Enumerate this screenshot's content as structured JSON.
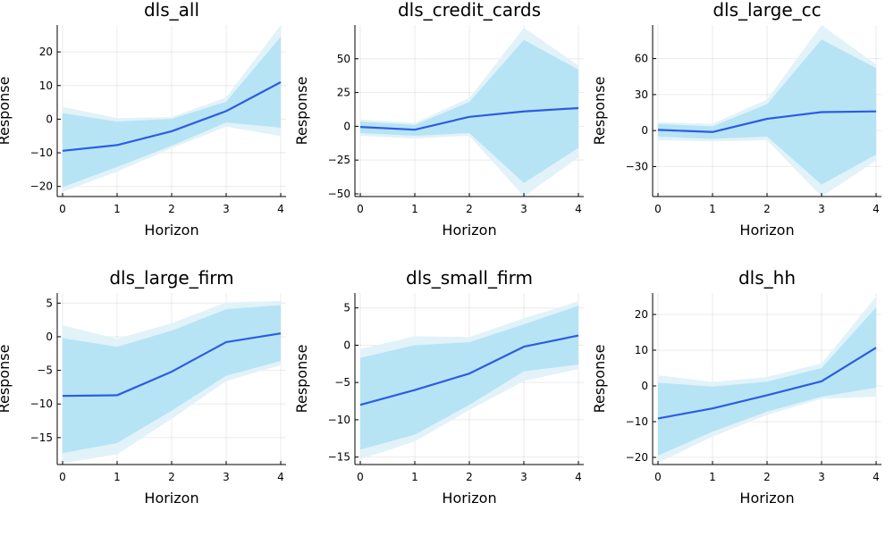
{
  "chart_data": [
    {
      "type": "line",
      "title": "dls_all",
      "xlabel": "Horizon",
      "ylabel": "Response",
      "x": [
        0,
        1,
        2,
        3,
        4
      ],
      "xticks": [
        "0",
        "1",
        "2",
        "3",
        "4"
      ],
      "yticks": [
        -20,
        -10,
        0,
        10,
        20
      ],
      "ylim": [
        -23,
        28
      ],
      "grid": true,
      "series": [
        {
          "values": [
            -9.4,
            -7.7,
            -3.6,
            2.4,
            11.0
          ]
        }
      ],
      "bands": {
        "outer_lower": [
          -21.6,
          -15.6,
          -8.6,
          -2.2,
          -5.0
        ],
        "outer_upper": [
          3.7,
          0.3,
          0.6,
          6.5,
          28.0
        ],
        "inner_lower": [
          -20.2,
          -14.2,
          -7.9,
          -1.0,
          -2.5
        ],
        "inner_upper": [
          1.8,
          -0.7,
          0.1,
          5.2,
          24.5
        ]
      }
    },
    {
      "type": "line",
      "title": "dls_credit_cards",
      "xlabel": "Horizon",
      "ylabel": "Response",
      "x": [
        0,
        1,
        2,
        3,
        4
      ],
      "xticks": [
        "0",
        "1",
        "2",
        "3",
        "4"
      ],
      "yticks": [
        -50,
        -25,
        0,
        25,
        50
      ],
      "ylim": [
        -52,
        75
      ],
      "grid": true,
      "series": [
        {
          "values": [
            -0.5,
            -2.5,
            7.0,
            11.0,
            13.5
          ]
        }
      ],
      "bands": {
        "outer_lower": [
          -7.0,
          -9.0,
          -7.0,
          -52.0,
          -23.0
        ],
        "outer_upper": [
          5.0,
          2.5,
          21.0,
          73.0,
          45.0
        ],
        "inner_lower": [
          -5.0,
          -7.0,
          -5.0,
          -42.0,
          -16.0
        ],
        "inner_upper": [
          3.5,
          1.0,
          18.0,
          64.0,
          42.0
        ]
      }
    },
    {
      "type": "line",
      "title": "dls_large_cc",
      "xlabel": "Horizon",
      "ylabel": "Response",
      "x": [
        0,
        1,
        2,
        3,
        4
      ],
      "xticks": [
        "0",
        "1",
        "2",
        "3",
        "4"
      ],
      "yticks": [
        -30,
        0,
        30,
        60
      ],
      "ylim": [
        -55,
        88
      ],
      "grid": true,
      "series": [
        {
          "values": [
            0.6,
            -1.2,
            9.8,
            15.4,
            16.0
          ]
        }
      ],
      "bands": {
        "outer_lower": [
          -8.0,
          -9.0,
          -8.0,
          -55.0,
          -25.0
        ],
        "outer_upper": [
          7.0,
          5.5,
          26.0,
          88.0,
          55.0
        ],
        "inner_lower": [
          -5.0,
          -7.0,
          -5.0,
          -45.0,
          -20.0
        ],
        "inner_upper": [
          5.5,
          3.5,
          22.0,
          76.0,
          52.0
        ]
      }
    },
    {
      "type": "line",
      "title": "dls_large_firm",
      "xlabel": "Horizon",
      "ylabel": "Response",
      "x": [
        0,
        1,
        2,
        3,
        4
      ],
      "xticks": [
        "0",
        "1",
        "2",
        "3",
        "4"
      ],
      "yticks": [
        -15,
        -10,
        -5,
        0,
        5
      ],
      "ylim": [
        -19,
        6.5
      ],
      "grid": true,
      "series": [
        {
          "values": [
            -8.8,
            -8.7,
            -5.2,
            -0.8,
            0.5
          ]
        }
      ],
      "bands": {
        "outer_lower": [
          -18.8,
          -17.5,
          -12.2,
          -6.6,
          -4.2
        ],
        "outer_upper": [
          1.7,
          -0.3,
          2.0,
          5.1,
          5.3
        ],
        "inner_lower": [
          -17.3,
          -15.8,
          -11.0,
          -5.8,
          -3.6
        ],
        "inner_upper": [
          -0.2,
          -1.5,
          0.9,
          4.1,
          4.7
        ]
      }
    },
    {
      "type": "line",
      "title": "dls_small_firm",
      "xlabel": "Horizon",
      "ylabel": "Response",
      "x": [
        0,
        1,
        2,
        3,
        4
      ],
      "xticks": [
        "0",
        "1",
        "2",
        "3",
        "4"
      ],
      "yticks": [
        -15,
        -10,
        -5,
        0,
        5
      ],
      "ylim": [
        -16,
        7
      ],
      "grid": true,
      "series": [
        {
          "values": [
            -8.0,
            -6.0,
            -3.8,
            -0.2,
            1.3
          ]
        }
      ],
      "bands": {
        "outer_lower": [
          -15.3,
          -12.9,
          -8.7,
          -4.8,
          -3.2
        ],
        "outer_upper": [
          -0.5,
          1.2,
          1.1,
          3.6,
          5.9
        ],
        "inner_lower": [
          -14.0,
          -12.0,
          -8.0,
          -3.5,
          -2.6
        ],
        "inner_upper": [
          -1.7,
          0.0,
          0.4,
          2.8,
          5.3
        ]
      }
    },
    {
      "type": "line",
      "title": "dls_hh",
      "xlabel": "Horizon",
      "ylabel": "Response",
      "x": [
        0,
        1,
        2,
        3,
        4
      ],
      "xticks": [
        "0",
        "1",
        "2",
        "3",
        "4"
      ],
      "yticks": [
        -20,
        -10,
        0,
        10,
        20
      ],
      "ylim": [
        -22,
        26
      ],
      "grid": true,
      "series": [
        {
          "values": [
            -9.1,
            -6.3,
            -2.6,
            1.3,
            10.7
          ]
        }
      ],
      "bands": {
        "outer_lower": [
          -21.5,
          -14.2,
          -8.1,
          -3.6,
          -3.0
        ],
        "outer_upper": [
          3.0,
          1.1,
          2.5,
          6.3,
          25.0
        ],
        "inner_lower": [
          -19.5,
          -12.8,
          -7.2,
          -3.0,
          -0.5
        ],
        "inner_upper": [
          0.9,
          -0.2,
          1.2,
          5.0,
          22.0
        ]
      }
    }
  ],
  "colors": {
    "line": "#2E5BE3",
    "band_outer": "#E2F2F9",
    "band_inner": "#B6E4F5"
  }
}
